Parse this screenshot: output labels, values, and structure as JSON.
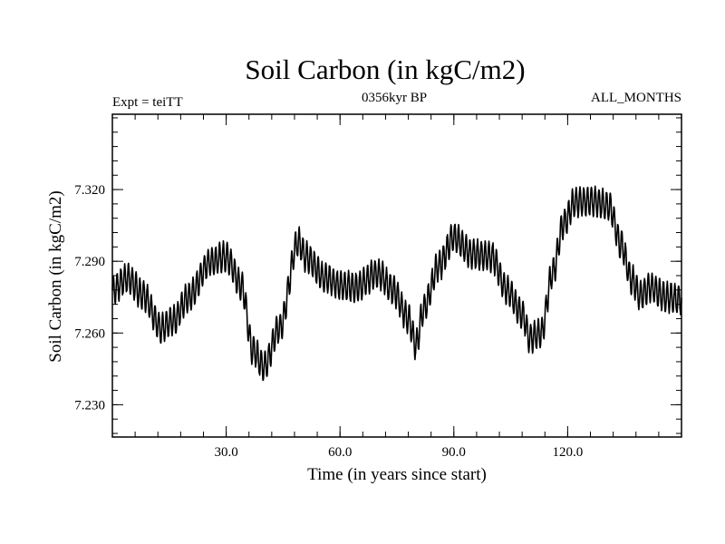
{
  "chart_data": {
    "type": "line",
    "title": "Soil Carbon (in kgC/m2)",
    "subtitle": "0356kyr BP",
    "experiment": "Expt = teiTT",
    "months": "ALL_MONTHS",
    "xlabel": "Time (in years since start)",
    "ylabel": "Soil Carbon (in kgC/m2)",
    "xlim": [
      0,
      150
    ],
    "ylim": [
      7.2165,
      7.3515
    ],
    "xticks": [
      30,
      60,
      90,
      120
    ],
    "xtick_labels": [
      "30.0",
      "60.0",
      "90.0",
      "120.0"
    ],
    "yticks": [
      7.23,
      7.26,
      7.29,
      7.32
    ],
    "ytick_labels": [
      "7.230",
      "7.260",
      "7.290",
      "7.320"
    ],
    "x_minor_step": 6,
    "y_minor_step": 0.006,
    "line_color": "#000000",
    "seasonal_amplitude": 0.006,
    "points_per_year": 12,
    "series": [
      {
        "name": "Soil Carbon",
        "x": [
          0,
          4,
          8,
          13,
          16,
          20,
          26,
          30,
          34,
          37,
          40,
          44,
          49,
          51,
          56,
          60,
          64,
          70,
          74,
          78,
          80,
          82,
          86,
          90,
          95,
          100,
          104,
          108,
          110,
          113,
          116,
          119,
          122,
          127,
          131,
          134,
          137,
          139,
          142,
          146,
          150
        ],
        "y": [
          7.278,
          7.283,
          7.276,
          7.262,
          7.265,
          7.275,
          7.29,
          7.292,
          7.28,
          7.253,
          7.246,
          7.262,
          7.298,
          7.292,
          7.283,
          7.28,
          7.279,
          7.285,
          7.278,
          7.266,
          7.255,
          7.27,
          7.288,
          7.3,
          7.293,
          7.292,
          7.278,
          7.268,
          7.258,
          7.26,
          7.285,
          7.306,
          7.315,
          7.315,
          7.313,
          7.297,
          7.282,
          7.276,
          7.279,
          7.275,
          7.274
        ]
      }
    ]
  }
}
